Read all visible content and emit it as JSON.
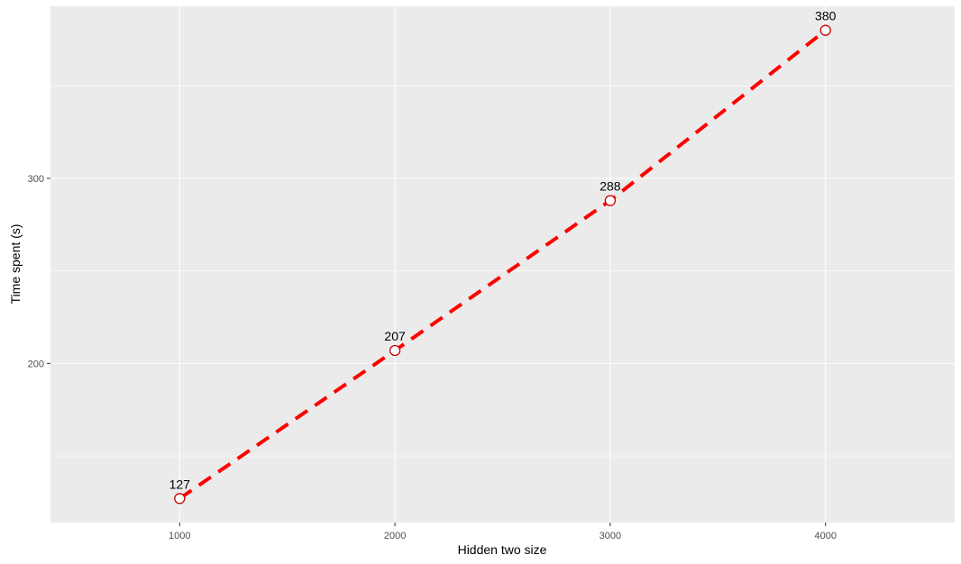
{
  "chart_data": {
    "type": "line",
    "title": "",
    "xlabel": "Hidden two size",
    "ylabel": "Time spent (s)",
    "x": [
      1000,
      2000,
      3000,
      4000
    ],
    "series": [
      {
        "values": [
          127,
          207,
          288,
          380
        ],
        "labels": [
          "127",
          "207",
          "288",
          "380"
        ]
      }
    ],
    "xlim": [
      400,
      4600
    ],
    "ylim": [
      114,
      393
    ],
    "x_ticks": [
      1000,
      2000,
      3000,
      4000
    ],
    "x_tick_labels": [
      "1000",
      "2000",
      "3000",
      "4000"
    ],
    "y_ticks": [
      200,
      300
    ],
    "y_tick_labels": [
      "200",
      "300"
    ],
    "y_minor_ticks": [
      150,
      250,
      350
    ],
    "grid": true,
    "legend": "none",
    "line_style": "dashed",
    "colors": {
      "panel": "#ebebeb",
      "grid": "#ffffff",
      "line": "#ff0000",
      "point_fill": "#ffffff",
      "point_stroke": "#cc0000"
    }
  }
}
